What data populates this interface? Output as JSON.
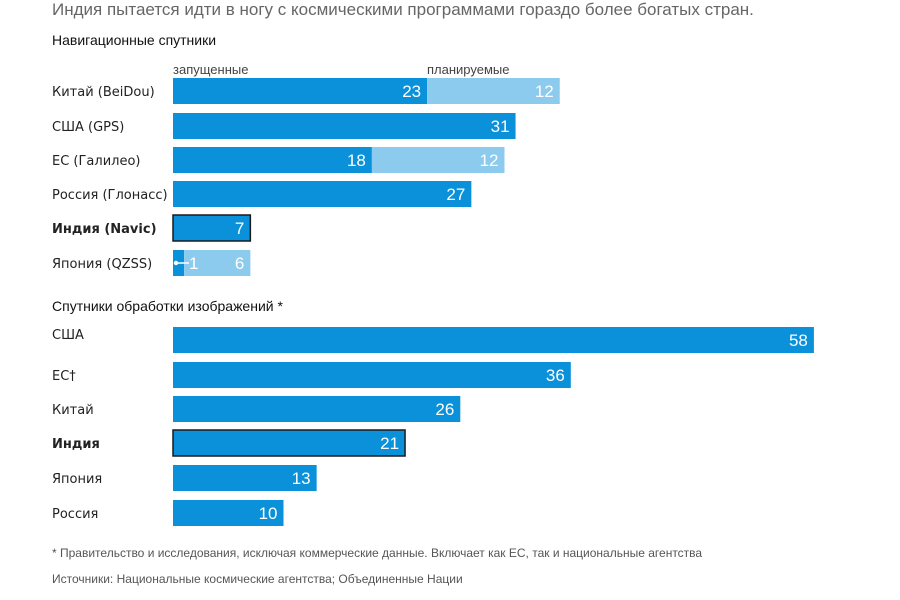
{
  "subtitle": "Индия пытается идти в ногу с космическими программами гораздо более богатых стран.",
  "footnote": "* Правительство и исследования, исключая коммерческие данные. Включает как ЕС, так и национальные агентства",
  "source": "Источники: Национальные космические агентства; Объединенные Нации",
  "colors": {
    "launched": "#0a91da",
    "planned": "#8ccbee",
    "highlight_border": "#1a1a1a"
  },
  "chart_data": [
    {
      "type": "bar",
      "orientation": "horizontal",
      "stacked": true,
      "title": "Навигационные спутники",
      "categories": [
        "Китай (BeiDou)",
        "США (GPS)",
        "ЕС (Галилео)",
        "Россия (Глонасс)",
        "Индия (Navic)",
        "Япония (QZSS)"
      ],
      "highlight": "Индия (Navic)",
      "legend": [
        "запущенные",
        "планируемые"
      ],
      "series": [
        {
          "name": "запущенные",
          "values": [
            23,
            31,
            18,
            27,
            7,
            1
          ]
        },
        {
          "name": "планируемые",
          "values": [
            12,
            0,
            12,
            0,
            0,
            6
          ]
        }
      ]
    },
    {
      "type": "bar",
      "orientation": "horizontal",
      "title": "Спутники обработки изображений *",
      "categories": [
        "США",
        "ЕС†",
        "Китай",
        "Индия",
        "Япония",
        "Россия"
      ],
      "highlight": "Индия",
      "values": [
        58,
        36,
        26,
        21,
        13,
        10
      ]
    }
  ]
}
